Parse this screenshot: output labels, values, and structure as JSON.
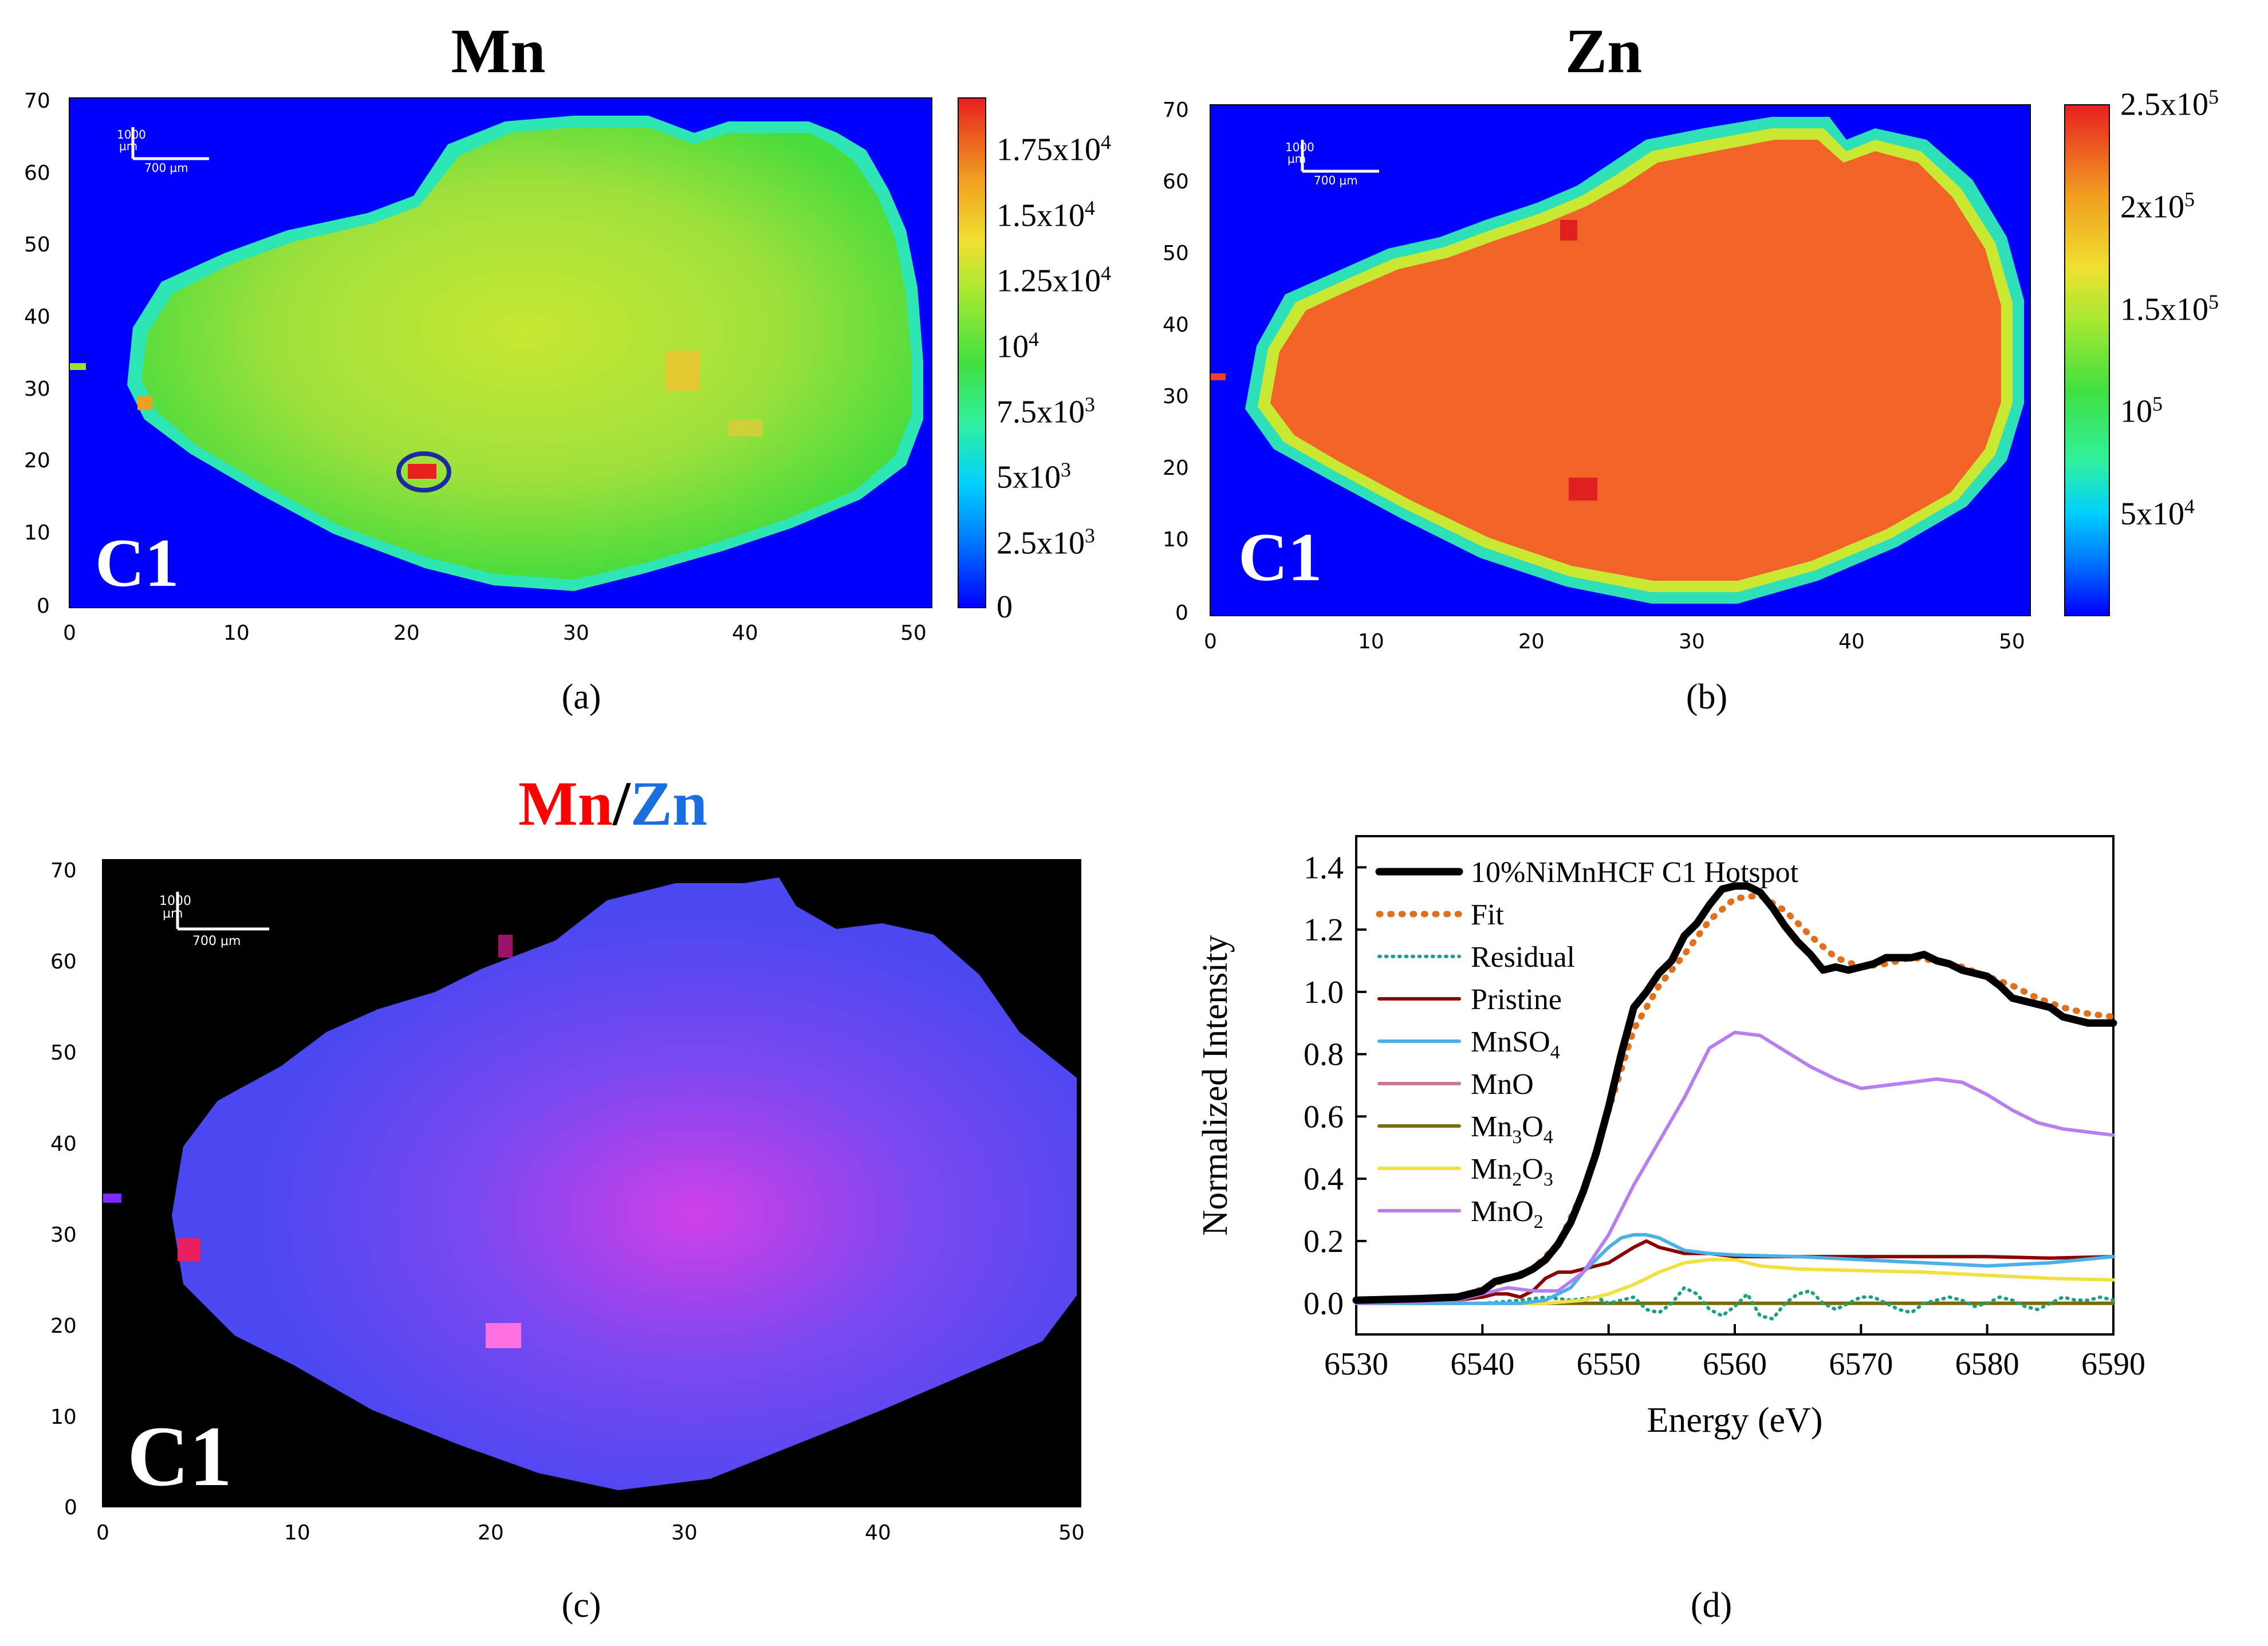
{
  "panels": {
    "a": {
      "title": "Mn",
      "letter": "(a)",
      "sample": "C1",
      "scale_major": "1000",
      "scale_unit": "μm",
      "scale_minor": "700 μm",
      "x_ticks": [
        "0",
        "10",
        "20",
        "30",
        "40",
        "50"
      ],
      "y_ticks": [
        "0",
        "10",
        "20",
        "30",
        "40",
        "50",
        "60",
        "70"
      ],
      "colorbar": [
        {
          "mant": "1.75x10",
          "exp": "4"
        },
        {
          "mant": "1.5x10",
          "exp": "4"
        },
        {
          "mant": "1.25x10",
          "exp": "4"
        },
        {
          "mant": "10",
          "exp": "4"
        },
        {
          "mant": "7.5x10",
          "exp": "3"
        },
        {
          "mant": "5x10",
          "exp": "3"
        },
        {
          "mant": "2.5x10",
          "exp": "3"
        },
        {
          "mant": "0",
          "exp": ""
        }
      ],
      "colorbar_values": [
        17500,
        15000,
        12500,
        10000,
        7500,
        5000,
        2500,
        0
      ],
      "colorbar_range": [
        0,
        19500
      ]
    },
    "b": {
      "title": "Zn",
      "letter": "(b)",
      "sample": "C1",
      "scale_major": "1000",
      "scale_unit": "μm",
      "scale_minor": "700 μm",
      "x_ticks": [
        "0",
        "10",
        "20",
        "30",
        "40",
        "50"
      ],
      "y_ticks": [
        "0",
        "10",
        "20",
        "30",
        "40",
        "50",
        "60",
        "70"
      ],
      "colorbar": [
        {
          "mant": "2.5x10",
          "exp": "5"
        },
        {
          "mant": "2x10",
          "exp": "5"
        },
        {
          "mant": "1.5x10",
          "exp": "5"
        },
        {
          "mant": "10",
          "exp": "5"
        },
        {
          "mant": "5x10",
          "exp": "4"
        }
      ],
      "colorbar_values": [
        250000,
        200000,
        150000,
        100000,
        50000
      ],
      "colorbar_range": [
        0,
        250000
      ]
    },
    "c": {
      "title_mn": "Mn",
      "title_slash": "/",
      "title_zn": "Zn",
      "letter": "(c)",
      "sample": "C1",
      "scale_major": "1000",
      "scale_unit": "μm",
      "scale_minor": "700 μm",
      "x_ticks": [
        "0",
        "10",
        "20",
        "30",
        "40",
        "50"
      ],
      "y_ticks": [
        "0",
        "10",
        "20",
        "30",
        "40",
        "50",
        "60",
        "70"
      ]
    },
    "d": {
      "letter": "(d)"
    }
  },
  "colors": {
    "mn_title": "#ff0000",
    "zn_title": "#1a6fe0",
    "map_bg": "#0000ff",
    "overlay_bg": "#000000"
  },
  "chart_data": {
    "type": "line",
    "xlabel": "Energy (eV)",
    "ylabel": "Normalized Intensity",
    "xlim": [
      6530,
      6590
    ],
    "ylim": [
      -0.1,
      1.5
    ],
    "x_ticks": [
      6530,
      6540,
      6550,
      6560,
      6570,
      6580,
      6590
    ],
    "y_ticks": [
      0.0,
      0.2,
      0.4,
      0.6,
      0.8,
      1.0,
      1.2,
      1.4
    ],
    "x_tick_labels": [
      "6530",
      "6540",
      "6550",
      "6560",
      "6570",
      "6580",
      "6590"
    ],
    "y_tick_labels": [
      "0.0",
      "0.2",
      "0.4",
      "0.6",
      "0.8",
      "1.0",
      "1.2",
      "1.4"
    ],
    "series": [
      {
        "name": "10%NiMnHCF C1 Hotspot",
        "name_sub": "",
        "name_tail": "",
        "color": "#000000",
        "dash": "solid",
        "width": 13,
        "x": [
          6530,
          6535,
          6538,
          6540,
          6541,
          6542,
          6543,
          6544,
          6545,
          6546,
          6547,
          6548,
          6549,
          6550,
          6551,
          6552,
          6553,
          6554,
          6555,
          6556,
          6557,
          6558,
          6559,
          6560,
          6561,
          6562,
          6563,
          6564,
          6565,
          6566,
          6567,
          6568,
          6569,
          6570,
          6571,
          6572,
          6573,
          6574,
          6575,
          6576,
          6577,
          6578,
          6579,
          6580,
          6581,
          6582,
          6583,
          6584,
          6585,
          6586,
          6587,
          6588,
          6589,
          6590
        ],
        "y": [
          0.01,
          0.015,
          0.02,
          0.04,
          0.07,
          0.08,
          0.09,
          0.11,
          0.14,
          0.19,
          0.26,
          0.36,
          0.48,
          0.63,
          0.8,
          0.95,
          1.0,
          1.06,
          1.1,
          1.18,
          1.22,
          1.28,
          1.33,
          1.34,
          1.34,
          1.32,
          1.27,
          1.21,
          1.16,
          1.12,
          1.07,
          1.08,
          1.07,
          1.08,
          1.09,
          1.11,
          1.11,
          1.11,
          1.12,
          1.1,
          1.09,
          1.07,
          1.06,
          1.05,
          1.02,
          0.98,
          0.97,
          0.96,
          0.95,
          0.92,
          0.91,
          0.9,
          0.9,
          0.9
        ]
      },
      {
        "name": "Fit",
        "name_sub": "",
        "name_tail": "",
        "color": "#e0701c",
        "dash": "dot",
        "width": 11,
        "x": [
          6530,
          6535,
          6538,
          6540,
          6542,
          6544,
          6546,
          6548,
          6550,
          6552,
          6554,
          6556,
          6558,
          6560,
          6562,
          6564,
          6566,
          6568,
          6570,
          6572,
          6574,
          6576,
          6578,
          6580,
          6582,
          6584,
          6586,
          6588,
          6590
        ],
        "y": [
          0.01,
          0.015,
          0.02,
          0.045,
          0.08,
          0.11,
          0.19,
          0.36,
          0.62,
          0.88,
          1.02,
          1.12,
          1.23,
          1.3,
          1.31,
          1.26,
          1.18,
          1.11,
          1.08,
          1.09,
          1.11,
          1.1,
          1.08,
          1.05,
          1.02,
          0.98,
          0.95,
          0.93,
          0.92
        ]
      },
      {
        "name": "Residual",
        "name_sub": "",
        "name_tail": "",
        "color": "#1aa085",
        "dash": "dot",
        "width": 6,
        "x": [
          6530,
          6535,
          6540,
          6543,
          6545,
          6547,
          6549,
          6550,
          6551,
          6552,
          6553,
          6554,
          6555,
          6556,
          6557,
          6558,
          6559,
          6560,
          6561,
          6562,
          6563,
          6564,
          6565,
          6566,
          6567,
          6568,
          6569,
          6570,
          6571,
          6572,
          6573,
          6574,
          6575,
          6576,
          6577,
          6578,
          6579,
          6580,
          6581,
          6582,
          6583,
          6584,
          6585,
          6586,
          6587,
          6588,
          6589,
          6590
        ],
        "y": [
          0.0,
          0.0,
          0.0,
          0.01,
          0.02,
          0.01,
          0.02,
          0.0,
          0.01,
          0.02,
          -0.02,
          -0.03,
          0.0,
          0.05,
          0.03,
          -0.02,
          -0.04,
          -0.01,
          0.03,
          -0.04,
          -0.05,
          0.0,
          0.03,
          0.04,
          0.0,
          -0.02,
          0.0,
          0.02,
          0.02,
          0.0,
          -0.02,
          -0.03,
          0.0,
          0.01,
          0.02,
          0.01,
          -0.01,
          0.0,
          0.02,
          0.01,
          -0.01,
          -0.02,
          0.0,
          0.02,
          0.01,
          0.01,
          0.02,
          0.01
        ]
      },
      {
        "name": "Pristine",
        "name_sub": "",
        "name_tail": "",
        "color": "#8b0000",
        "dash": "solid",
        "width": 6,
        "x": [
          6530,
          6538,
          6540,
          6541,
          6542,
          6543,
          6544,
          6545,
          6546,
          6547,
          6548,
          6550,
          6552,
          6553,
          6554,
          6556,
          6558,
          6560,
          6565,
          6570,
          6575,
          6580,
          6585,
          6590
        ],
        "y": [
          0.0,
          0.01,
          0.02,
          0.03,
          0.03,
          0.02,
          0.04,
          0.08,
          0.1,
          0.1,
          0.11,
          0.13,
          0.18,
          0.2,
          0.18,
          0.16,
          0.16,
          0.15,
          0.15,
          0.15,
          0.15,
          0.15,
          0.145,
          0.15
        ]
      },
      {
        "name": "MnSO",
        "name_sub": "4",
        "name_tail": "",
        "color": "#4ab0e8",
        "dash": "solid",
        "width": 6,
        "x": [
          6530,
          6540,
          6543,
          6545,
          6547,
          6548,
          6549,
          6550,
          6551,
          6552,
          6553,
          6554,
          6555,
          6556,
          6558,
          6560,
          6565,
          6570,
          6575,
          6580,
          6585,
          6590
        ],
        "y": [
          0.0,
          0.0,
          0.0,
          0.01,
          0.05,
          0.1,
          0.14,
          0.18,
          0.21,
          0.22,
          0.22,
          0.21,
          0.19,
          0.17,
          0.16,
          0.155,
          0.15,
          0.14,
          0.13,
          0.12,
          0.13,
          0.15
        ]
      },
      {
        "name": "MnO",
        "name_sub": "",
        "name_tail": "",
        "color": "#c8789a",
        "dash": "solid",
        "width": 6,
        "x": [
          6530,
          6590
        ],
        "y": [
          0.0,
          0.0
        ]
      },
      {
        "name": "Mn",
        "name_sub": "3",
        "name_tail": "O4",
        "color": "#7a6a10",
        "dash": "solid",
        "width": 6,
        "x": [
          6530,
          6590
        ],
        "y": [
          0.0,
          0.0
        ]
      },
      {
        "name": "Mn",
        "name_sub": "2",
        "name_tail": "O3",
        "color": "#f0e040",
        "dash": "solid",
        "width": 6,
        "x": [
          6530,
          6545,
          6548,
          6550,
          6552,
          6554,
          6556,
          6558,
          6560,
          6562,
          6565,
          6570,
          6575,
          6580,
          6585,
          6590
        ],
        "y": [
          0.0,
          0.0,
          0.01,
          0.03,
          0.06,
          0.1,
          0.13,
          0.14,
          0.14,
          0.12,
          0.11,
          0.105,
          0.1,
          0.09,
          0.08,
          0.075
        ]
      },
      {
        "name": "MnO",
        "name_sub": "2",
        "name_tail": "",
        "color": "#b67ef0",
        "dash": "solid",
        "width": 6,
        "x": [
          6530,
          6538,
          6540,
          6542,
          6544,
          6546,
          6548,
          6550,
          6552,
          6554,
          6556,
          6558,
          6560,
          6562,
          6564,
          6566,
          6568,
          6570,
          6572,
          6574,
          6576,
          6578,
          6580,
          6582,
          6584,
          6586,
          6588,
          6590
        ],
        "y": [
          0.0,
          0.01,
          0.03,
          0.05,
          0.04,
          0.04,
          0.1,
          0.22,
          0.38,
          0.52,
          0.66,
          0.82,
          0.87,
          0.86,
          0.81,
          0.76,
          0.72,
          0.69,
          0.7,
          0.71,
          0.72,
          0.71,
          0.67,
          0.62,
          0.58,
          0.56,
          0.55,
          0.54
        ]
      }
    ]
  }
}
